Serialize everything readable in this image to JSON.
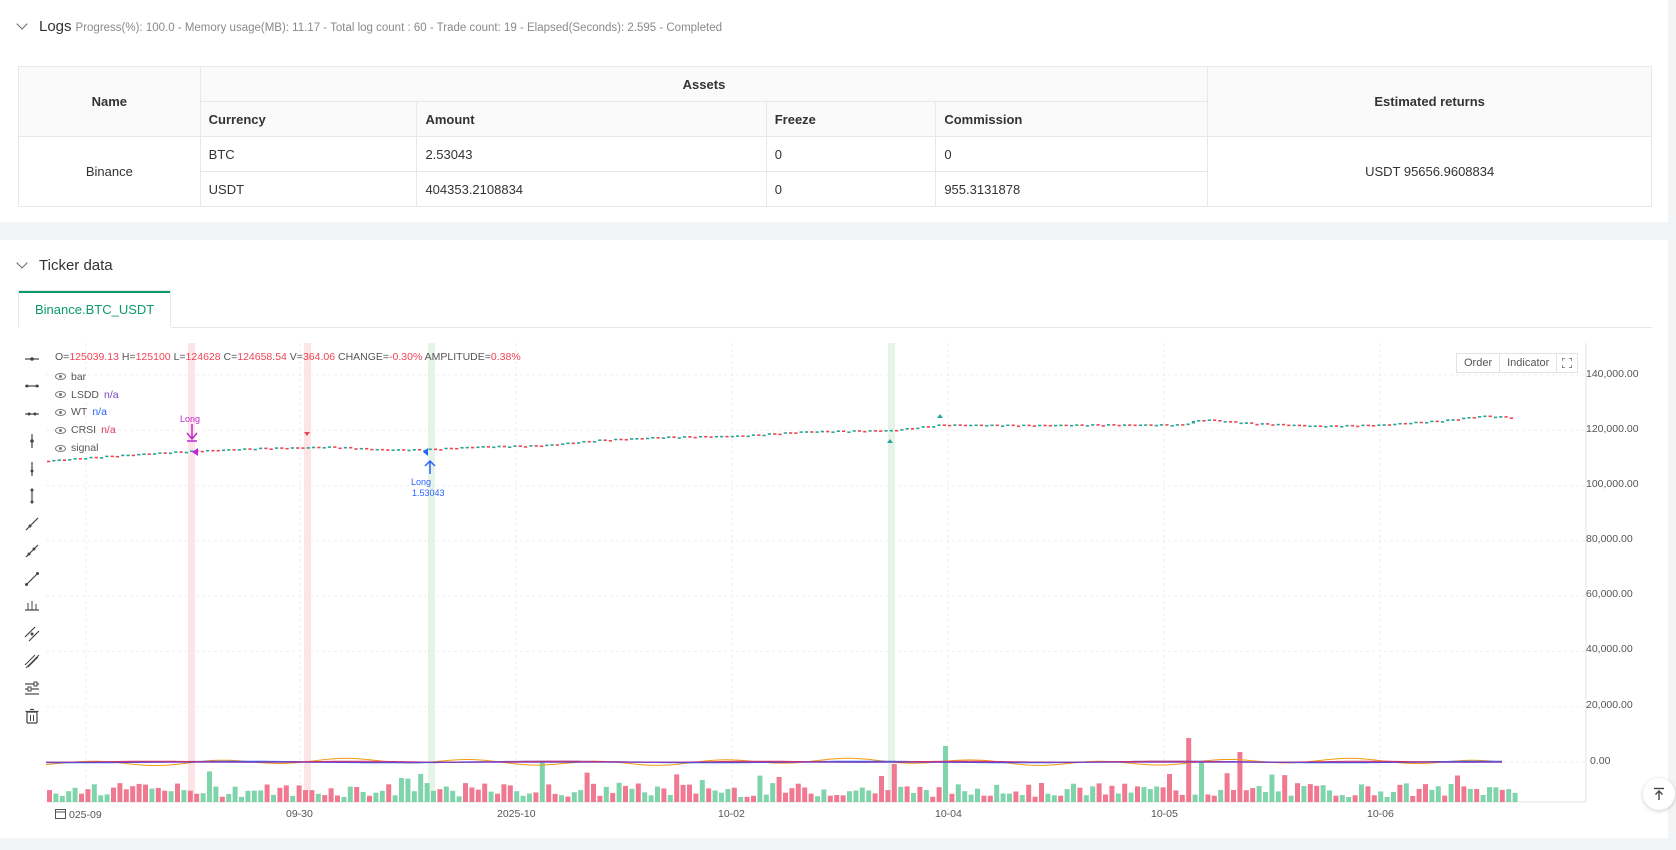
{
  "logs": {
    "title": "Logs",
    "status": "Progress(%): 100.0  - Memory usage(MB): 11.17 - Total log count : 60 - Trade count:  19 - Elapsed(Seconds): 2.595 - Completed"
  },
  "assets_table": {
    "col_name": "Name",
    "col_assets": "Assets",
    "col_returns": "Estimated returns",
    "sub_cols": [
      "Currency",
      "Amount",
      "Freeze",
      "Commission"
    ],
    "exchange": "Binance",
    "rows": [
      {
        "currency": "BTC",
        "amount": "2.53043",
        "freeze": "0",
        "commission": "0"
      },
      {
        "currency": "USDT",
        "amount": "404353.2108834",
        "freeze": "0",
        "commission": "955.3131878"
      }
    ],
    "returns": "USDT 95656.9608834"
  },
  "ticker": {
    "title": "Ticker data",
    "tab": "Binance.BTC_USDT"
  },
  "chart": {
    "ohlc": {
      "o_label": "O=",
      "o": "125039.13",
      "h_label": "H=",
      "h": "125100",
      "l_label": "L=",
      "l": "124628",
      "c_label": "C=",
      "c": "124658.54",
      "v_label": "V=",
      "v": "364.06",
      "change_label": "CHANGE=",
      "change": "-0.30%",
      "amp_label": "AMPLITUDE=",
      "amp": "0.38%"
    },
    "legend": [
      {
        "name": "bar",
        "value": "",
        "color": "#555555"
      },
      {
        "name": "LSDD",
        "value": "n/a",
        "color": "#7b3fbf"
      },
      {
        "name": "WT",
        "value": "n/a",
        "color": "#2962ff"
      },
      {
        "name": "CRSI",
        "value": "n/a",
        "color": "#e0335a"
      },
      {
        "name": "signal",
        "value": "",
        "color": "#555555"
      }
    ],
    "buttons": {
      "order": "Order",
      "indicator": "Indicator"
    },
    "y_ticks": [
      "140,000.00",
      "120,000.00",
      "100,000.00",
      "80,000.00",
      "60,000.00",
      "40,000.00",
      "20,000.00",
      "0.00"
    ],
    "x_ticks": [
      "025-09",
      "09-30",
      "2025-10",
      "10-02",
      "10-04",
      "10-05",
      "10-06"
    ],
    "markers": {
      "long1": "Long",
      "long2": "Long",
      "long2_qty": "1.53043"
    },
    "colors": {
      "up": "#26a69a",
      "up_bar": "#7fd4ac",
      "down": "#ef4455",
      "down_bar": "#f07890",
      "accent": "#0a9a6e"
    }
  },
  "chart_data": {
    "type": "candlestick",
    "series": [
      {
        "name": "bar",
        "x_range": [
          "2025-09-29",
          "2025-10-06"
        ],
        "close_approx": [
          109000,
          111500,
          113500,
          114000,
          113000,
          115500,
          118000,
          119000,
          120000,
          122000,
          121800,
          122000,
          123500,
          122500,
          121500,
          122500,
          123500,
          125000,
          124658.54
        ]
      },
      {
        "name": "volume",
        "values": [
          2000,
          2500,
          3000,
          2800,
          4000,
          5000,
          6000,
          4500,
          3500,
          3000,
          5500,
          7500,
          8000,
          13000,
          4000,
          3000,
          3500,
          7000,
          12500,
          6000,
          4500,
          3000,
          4000,
          5000,
          3500
        ]
      }
    ],
    "ylim": [
      0,
      145000
    ]
  }
}
